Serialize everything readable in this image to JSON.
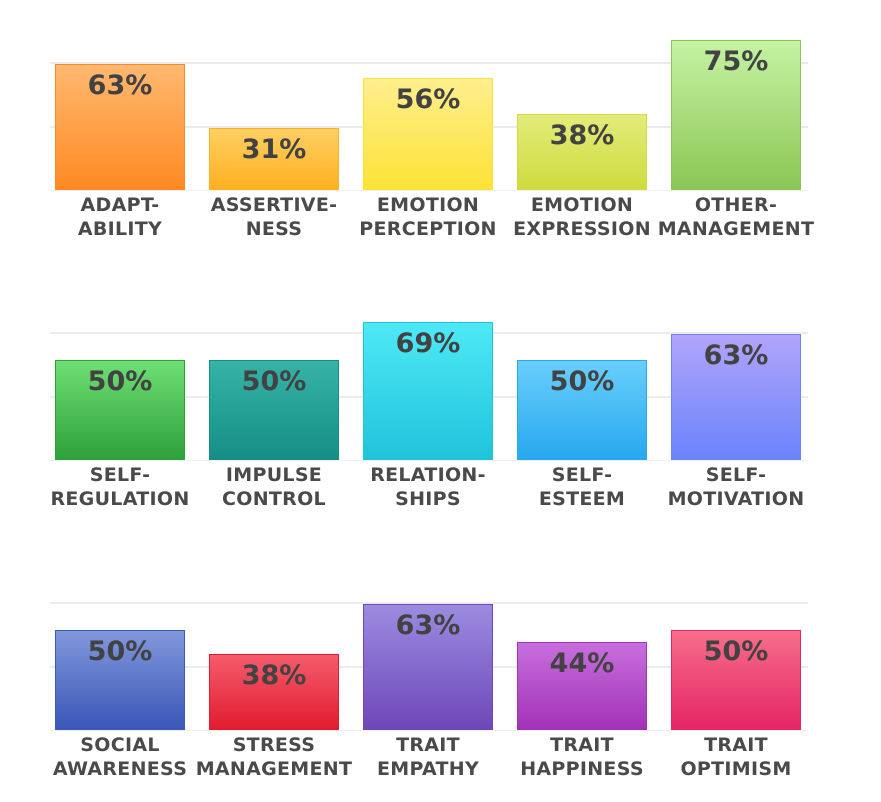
{
  "chart_data": [
    {
      "type": "bar",
      "ylim": [
        0,
        100
      ],
      "grid": true,
      "categories": [
        [
          "ADAPT-",
          "ABILITY"
        ],
        [
          "ASSERTIVE-",
          "NESS"
        ],
        [
          "EMOTION",
          "PERCEPTION"
        ],
        [
          "EMOTION",
          "EXPRESSION"
        ],
        [
          "OTHER-",
          "MANAGEMENT"
        ]
      ],
      "values": [
        63,
        31,
        56,
        38,
        75
      ],
      "labels": [
        "63%",
        "31%",
        "56%",
        "38%",
        "75%"
      ],
      "colors": [
        [
          "#ffb870",
          "#ff8a22"
        ],
        [
          "#ffcf63",
          "#ffb021"
        ],
        [
          "#ffef8e",
          "#fde236"
        ],
        [
          "#e3ec7a",
          "#cfdb3e"
        ],
        [
          "#c5f3a3",
          "#8bc655"
        ]
      ]
    },
    {
      "type": "bar",
      "ylim": [
        0,
        100
      ],
      "grid": true,
      "categories": [
        [
          "SELF-",
          "REGULATION"
        ],
        [
          "IMPULSE",
          "CONTROL"
        ],
        [
          "RELATION-",
          "SHIPS"
        ],
        [
          "SELF-",
          "ESTEEM"
        ],
        [
          "SELF-",
          "MOTIVATION"
        ]
      ],
      "values": [
        50,
        50,
        69,
        50,
        63
      ],
      "labels": [
        "50%",
        "50%",
        "69%",
        "50%",
        "63%"
      ],
      "colors": [
        [
          "#6edf73",
          "#2ea13b"
        ],
        [
          "#36b3a6",
          "#158f85"
        ],
        [
          "#4ee9f7",
          "#20c4db"
        ],
        [
          "#69cffb",
          "#27a8ef"
        ],
        [
          "#b2a4fb",
          "#6a84fb"
        ]
      ]
    },
    {
      "type": "bar",
      "ylim": [
        0,
        100
      ],
      "grid": true,
      "categories": [
        [
          "SOCIAL",
          "AWARENESS"
        ],
        [
          "STRESS",
          "MANAGEMENT"
        ],
        [
          "TRAIT",
          "EMPATHY"
        ],
        [
          "TRAIT",
          "HAPPINESS"
        ],
        [
          "TRAIT",
          "OPTIMISM"
        ]
      ],
      "values": [
        50,
        38,
        63,
        44,
        50
      ],
      "labels": [
        "50%",
        "38%",
        "63%",
        "44%",
        "50%"
      ],
      "colors": [
        [
          "#8198dc",
          "#3b57b8"
        ],
        [
          "#f55c6c",
          "#e21c30"
        ],
        [
          "#9b8ce0",
          "#6f47b9"
        ],
        [
          "#c76fdd",
          "#a232b8"
        ],
        [
          "#f76e8b",
          "#e52565"
        ]
      ]
    }
  ]
}
